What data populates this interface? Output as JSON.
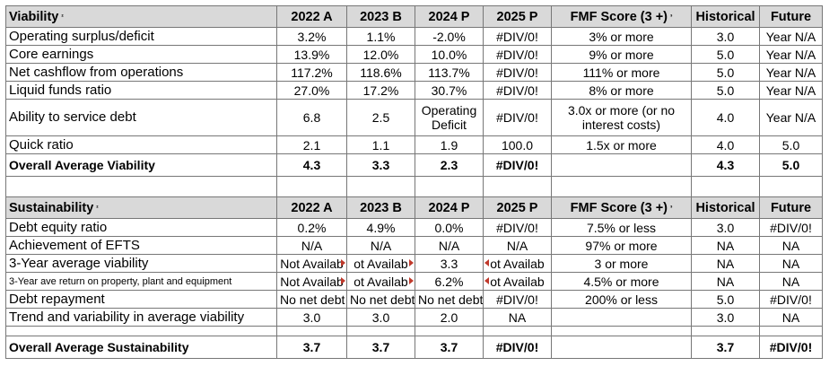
{
  "viability": {
    "header": [
      "Viability",
      "2022 A",
      "2023 B",
      "2024 P",
      "2025 P",
      "FMF Score (3 +)",
      "Historical",
      "Future"
    ],
    "header_sup": "²",
    "fmf_sup": "³",
    "rows": [
      {
        "label": "Operating surplus/deficit",
        "v": [
          "3.2%",
          "1.1%",
          "-2.0%",
          "#DIV/0!",
          "3% or more",
          "3.0",
          "Year N/A"
        ]
      },
      {
        "label": "Core earnings",
        "v": [
          "13.9%",
          "12.0%",
          "10.0%",
          "#DIV/0!",
          "9% or more",
          "5.0",
          "Year N/A"
        ]
      },
      {
        "label": "Net cashflow from operations",
        "v": [
          "117.2%",
          "118.6%",
          "113.7%",
          "#DIV/0!",
          "111% or more",
          "5.0",
          "Year N/A"
        ]
      },
      {
        "label": "Liquid funds ratio",
        "v": [
          "27.0%",
          "17.2%",
          "30.7%",
          "#DIV/0!",
          "8% or more",
          "5.0",
          "Year N/A"
        ]
      },
      {
        "label": "Ability to service debt",
        "v": [
          "6.8",
          "2.5",
          "Operating Deficit",
          "#DIV/0!",
          "3.0x or more (or no interest costs)",
          "4.0",
          "Year N/A"
        ]
      },
      {
        "label": "Quick ratio",
        "v": [
          "2.1",
          "1.1",
          "1.9",
          "100.0",
          "1.5x or more",
          "4.0",
          "5.0"
        ]
      }
    ],
    "average": {
      "label": "Overall Average Viability",
      "v": [
        "4.3",
        "3.3",
        "2.3",
        "#DIV/0!",
        "",
        "4.3",
        "5.0"
      ]
    }
  },
  "sustainability": {
    "header": [
      "Sustainability",
      "2022 A",
      "2023 B",
      "2024 P",
      "2025 P",
      "FMF Score (3 +)",
      "Historical",
      "Future"
    ],
    "header_sup": "²",
    "fmf_sup": "³",
    "rows": [
      {
        "label": "Debt equity ratio",
        "v": [
          "0.2%",
          "4.9%",
          "0.0%",
          "#DIV/0!",
          "7.5% or less",
          "3.0",
          "#DIV/0!"
        ]
      },
      {
        "label": "Achievement of EFTS",
        "v": [
          "N/A",
          "N/A",
          "N/A",
          "N/A",
          "97% or more",
          "NA",
          "NA"
        ]
      },
      {
        "label": "3-Year average viability",
        "v": [
          "Not Availab",
          "ot Availab",
          "3.3",
          "ot Availab",
          "3 or more",
          "NA",
          "NA"
        ]
      },
      {
        "label": "3-Year ave return on property, plant and equipment",
        "v": [
          "Not Availab",
          "ot Availab",
          "6.2%",
          "ot Availab",
          "4.5% or more",
          "NA",
          "NA"
        ]
      },
      {
        "label": "Debt repayment",
        "v": [
          "No net debt",
          "No net debt",
          "No net debt",
          "#DIV/0!",
          "200% or less",
          "5.0",
          "#DIV/0!"
        ]
      },
      {
        "label": "Trend and variability in average viability",
        "v": [
          "3.0",
          "3.0",
          "2.0",
          "NA",
          "",
          "3.0",
          "NA"
        ]
      }
    ],
    "average": {
      "label": "Overall Average Sustainability",
      "v": [
        "3.7",
        "3.7",
        "3.7",
        "#DIV/0!",
        "",
        "3.7",
        "#DIV/0!"
      ]
    }
  }
}
